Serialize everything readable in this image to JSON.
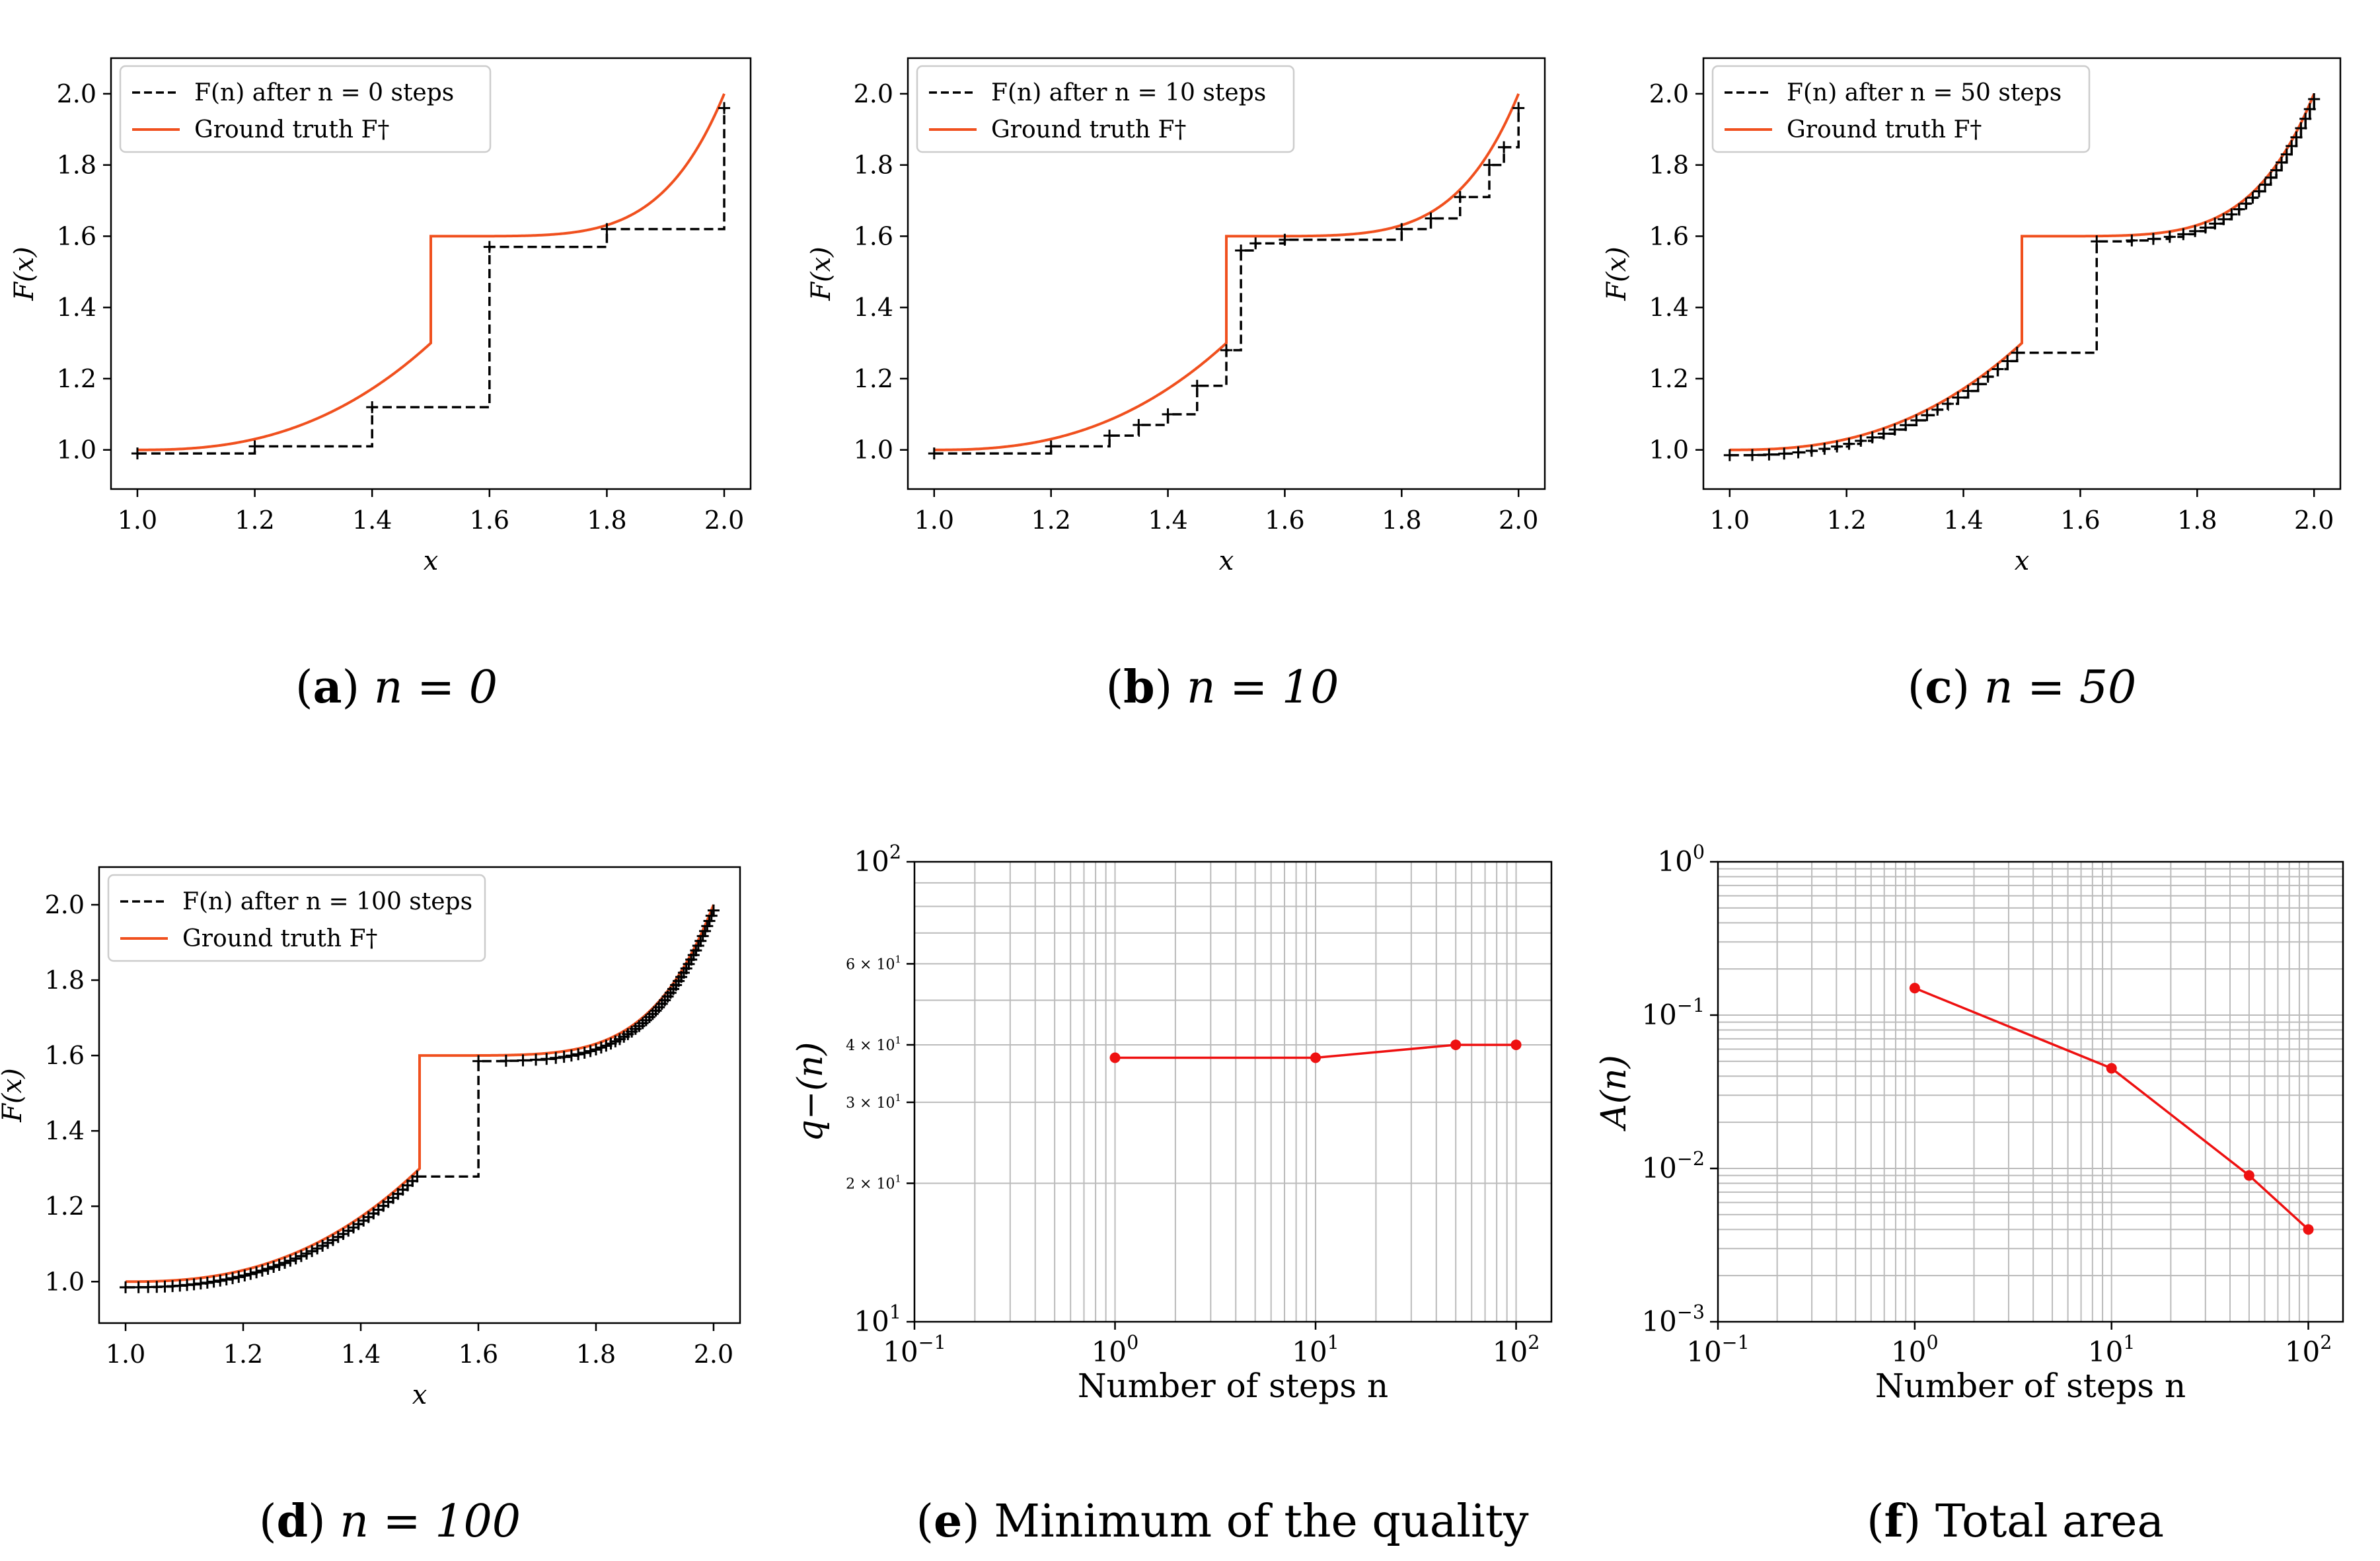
{
  "figure": {
    "captions": [
      {
        "letter": "a",
        "text": "n = 0"
      },
      {
        "letter": "b",
        "text": "n = 10"
      },
      {
        "letter": "c",
        "text": "n = 50"
      },
      {
        "letter": "d",
        "text": "n = 100"
      },
      {
        "letter": "e",
        "text": "Minimum of the quality"
      },
      {
        "letter": "f",
        "text": "Total area"
      }
    ]
  },
  "colors": {
    "ground_truth": "#f0501e",
    "approx": "#000000",
    "metric": "#ee1111",
    "grid": "#bbbbbb"
  },
  "chart_data": [
    {
      "panel": "a",
      "type": "line",
      "xlabel": "x",
      "ylabel": "F(x)",
      "xlim": [
        0.955,
        2.045
      ],
      "ylim": [
        0.89,
        2.1
      ],
      "xticks": [
        "1.0",
        "1.2",
        "1.4",
        "1.6",
        "1.8",
        "2.0"
      ],
      "xtick_values": [
        1.0,
        1.2,
        1.4,
        1.6,
        1.8,
        2.0
      ],
      "yticks": [
        "1.0",
        "1.2",
        "1.4",
        "1.6",
        "1.8",
        "2.0"
      ],
      "ytick_values": [
        1.0,
        1.2,
        1.4,
        1.6,
        1.8,
        2.0
      ],
      "legend": [
        "F(n) after n = 0 steps",
        "Ground truth F†"
      ],
      "series": [
        {
          "name": "F(n) after n = 0 steps",
          "style": "dashed-step",
          "x": [
            1.0,
            1.2,
            1.4,
            1.6,
            1.8,
            2.0
          ],
          "y": [
            0.99,
            1.01,
            1.12,
            1.57,
            1.62,
            1.96
          ]
        },
        {
          "name": "Ground truth F†",
          "style": "solid",
          "function": "ground_truth"
        }
      ]
    },
    {
      "panel": "b",
      "type": "line",
      "xlabel": "x",
      "ylabel": "F(x)",
      "xlim": [
        0.955,
        2.045
      ],
      "ylim": [
        0.89,
        2.1
      ],
      "xticks": [
        "1.0",
        "1.2",
        "1.4",
        "1.6",
        "1.8",
        "2.0"
      ],
      "xtick_values": [
        1.0,
        1.2,
        1.4,
        1.6,
        1.8,
        2.0
      ],
      "yticks": [
        "1.0",
        "1.2",
        "1.4",
        "1.6",
        "1.8",
        "2.0"
      ],
      "ytick_values": [
        1.0,
        1.2,
        1.4,
        1.6,
        1.8,
        2.0
      ],
      "legend": [
        "F(n) after n = 10 steps",
        "Ground truth F†"
      ],
      "series": [
        {
          "name": "F(n) after n = 10 steps",
          "style": "dashed-step",
          "x": [
            1.0,
            1.2,
            1.3,
            1.35,
            1.4,
            1.45,
            1.5,
            1.525,
            1.55,
            1.6,
            1.8,
            1.85,
            1.9,
            1.95,
            1.975,
            2.0
          ],
          "y": [
            0.99,
            1.01,
            1.04,
            1.07,
            1.1,
            1.18,
            1.28,
            1.56,
            1.58,
            1.59,
            1.62,
            1.65,
            1.71,
            1.8,
            1.85,
            1.96
          ]
        },
        {
          "name": "Ground truth F†",
          "style": "solid",
          "function": "ground_truth"
        }
      ]
    },
    {
      "panel": "c",
      "type": "line",
      "xlabel": "x",
      "ylabel": "F(x)",
      "xlim": [
        0.955,
        2.045
      ],
      "ylim": [
        0.89,
        2.1
      ],
      "xticks": [
        "1.0",
        "1.2",
        "1.4",
        "1.6",
        "1.8",
        "2.0"
      ],
      "xtick_values": [
        1.0,
        1.2,
        1.4,
        1.6,
        1.8,
        2.0
      ],
      "yticks": [
        "1.0",
        "1.2",
        "1.4",
        "1.6",
        "1.8",
        "2.0"
      ],
      "ytick_values": [
        1.0,
        1.2,
        1.4,
        1.6,
        1.8,
        2.0
      ],
      "legend": [
        "F(n) after n = 50 steps",
        "Ground truth F†"
      ],
      "series": [
        {
          "name": "F(n) after n = 50 steps",
          "style": "dashed-step",
          "auto_steps": 50
        },
        {
          "name": "Ground truth F†",
          "style": "solid",
          "function": "ground_truth"
        }
      ]
    },
    {
      "panel": "d",
      "type": "line",
      "xlabel": "x",
      "ylabel": "F(x)",
      "xlim": [
        0.955,
        2.045
      ],
      "ylim": [
        0.89,
        2.1
      ],
      "xticks": [
        "1.0",
        "1.2",
        "1.4",
        "1.6",
        "1.8",
        "2.0"
      ],
      "xtick_values": [
        1.0,
        1.2,
        1.4,
        1.6,
        1.8,
        2.0
      ],
      "yticks": [
        "1.0",
        "1.2",
        "1.4",
        "1.6",
        "1.8",
        "2.0"
      ],
      "ytick_values": [
        1.0,
        1.2,
        1.4,
        1.6,
        1.8,
        2.0
      ],
      "legend": [
        "F(n) after n = 100 steps",
        "Ground truth F†"
      ],
      "series": [
        {
          "name": "F(n) after n = 100 steps",
          "style": "dashed-step",
          "auto_steps": 100
        },
        {
          "name": "Ground truth F†",
          "style": "solid",
          "function": "ground_truth"
        }
      ]
    },
    {
      "panel": "e",
      "type": "line",
      "scale": "loglog",
      "xlabel": "Number of steps n",
      "ylabel": "q−(n)",
      "xlim": [
        0.1,
        150
      ],
      "ylim": [
        10,
        100
      ],
      "xticks": [
        "10−1",
        "100",
        "101",
        "102"
      ],
      "xtick_values": [
        0.1,
        1,
        10,
        100
      ],
      "yticks": [
        "101",
        "2 × 101",
        "3 × 101",
        "4 × 101",
        "6 × 101",
        "102"
      ],
      "ytick_values": [
        10,
        20,
        30,
        40,
        60,
        100
      ],
      "series": [
        {
          "name": "q−(n)",
          "x": [
            1,
            10,
            50,
            100
          ],
          "y": [
            37.5,
            37.5,
            40,
            40
          ]
        }
      ]
    },
    {
      "panel": "f",
      "type": "line",
      "scale": "loglog",
      "xlabel": "Number of steps n",
      "ylabel": "A(n)",
      "xlim": [
        0.1,
        150
      ],
      "ylim": [
        0.001,
        1
      ],
      "xticks": [
        "10−1",
        "100",
        "101",
        "102"
      ],
      "xtick_values": [
        0.1,
        1,
        10,
        100
      ],
      "yticks": [
        "10−3",
        "10−2",
        "10−1",
        "100"
      ],
      "ytick_values": [
        0.001,
        0.01,
        0.1,
        1
      ],
      "series": [
        {
          "name": "A(n)",
          "x": [
            1,
            10,
            50,
            100
          ],
          "y": [
            0.15,
            0.045,
            0.009,
            0.004
          ]
        }
      ]
    }
  ]
}
